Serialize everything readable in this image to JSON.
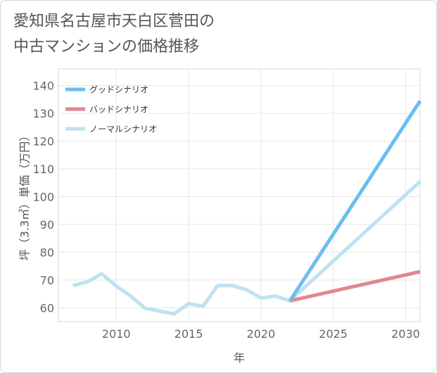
{
  "title_lines": [
    "愛知県名古屋市天白区菅田の",
    "中古マンションの価格推移"
  ],
  "chart_data": {
    "type": "line",
    "title": "愛知県名古屋市天白区菅田の中古マンションの価格推移",
    "xlabel": "年",
    "ylabel": "坪（3.3㎡）単価（万円）",
    "xlim": [
      2006,
      2031
    ],
    "ylim": [
      55,
      146
    ],
    "xticks": [
      2010,
      2015,
      2020,
      2025,
      2030
    ],
    "yticks": [
      60,
      70,
      80,
      90,
      100,
      110,
      120,
      130,
      140
    ],
    "grid": true,
    "legend_position": "top-left",
    "series": [
      {
        "name": "グッドシナリオ",
        "color": "#6bbdf0",
        "x": [
          2022,
          2031
        ],
        "y": [
          62.5,
          134.5
        ]
      },
      {
        "name": "バッドシナリオ",
        "color": "#df8890",
        "x": [
          2022,
          2031
        ],
        "y": [
          62.5,
          73
        ]
      },
      {
        "name": "ノーマルシナリオ",
        "color": "#bfe1f0",
        "x": [
          2007,
          2008,
          2009,
          2010,
          2011,
          2012,
          2013,
          2014,
          2015,
          2016,
          2017,
          2018,
          2019,
          2020,
          2021,
          2022,
          2031
        ],
        "y": [
          68,
          69.3,
          72.2,
          67.8,
          64.2,
          59.8,
          58.8,
          57.8,
          61.5,
          60.5,
          68,
          68,
          66.5,
          63.5,
          64.2,
          62.5,
          105.5
        ]
      }
    ]
  }
}
